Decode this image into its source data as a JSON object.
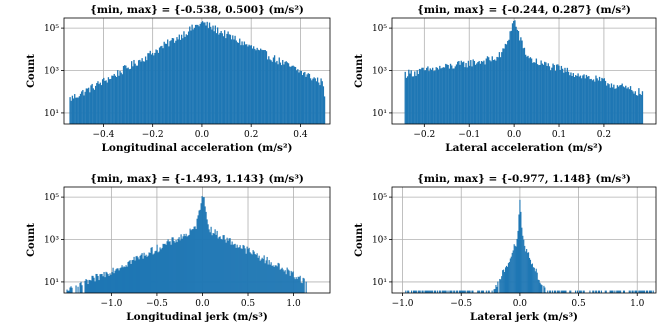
{
  "chart_data": [
    {
      "type": "bar",
      "title": "{min, max} = {-0.538, 0.500} (m/s²)",
      "xlabel": "Longitudinal acceleration (m/s²)",
      "ylabel": "Count",
      "xlim": [
        -0.56,
        0.52
      ],
      "ylim_log": [
        3,
        300000
      ],
      "yscale": "log",
      "xticks": [
        -0.4,
        -0.2,
        0.0,
        0.2,
        0.4
      ],
      "xtick_labels": [
        "−0.4",
        "−0.2",
        "0.0",
        "0.2",
        "0.4"
      ],
      "yticks": [
        10,
        1000,
        100000
      ],
      "ytick_labels": [
        "10¹",
        "10³",
        "10⁵"
      ],
      "grid": true,
      "color": "#1f77b4",
      "shape": {
        "min": -0.538,
        "max": 0.5,
        "peak": 180000,
        "widthL": 0.06,
        "widthR": 0.075,
        "tailL": 0.3,
        "tailR": 0.15,
        "tailFloor": 5,
        "nbins": 220
      }
    },
    {
      "type": "bar",
      "title": "{min, max} = {-0.244, 0.287} (m/s²)",
      "xlabel": "Lateral acceleration (m/s²)",
      "ylabel": "Count",
      "xlim": [
        -0.272,
        0.316
      ],
      "ylim_log": [
        3,
        300000
      ],
      "yscale": "log",
      "xticks": [
        -0.2,
        -0.1,
        0.0,
        0.1,
        0.2
      ],
      "xtick_labels": [
        "−0.2",
        "−0.1",
        "0.0",
        "0.1",
        "0.2"
      ],
      "yticks": [
        10,
        1000,
        100000
      ],
      "ytick_labels": [
        "10¹",
        "10³",
        "10⁵"
      ],
      "grid": true,
      "color": "#1f77b4",
      "shape": {
        "min": -0.244,
        "max": 0.287,
        "peak": 250000,
        "widthL": 0.006,
        "widthR": 0.006,
        "tailL": 0.35,
        "tailR": 0.2,
        "tailFloor": 6,
        "nbins": 200
      }
    },
    {
      "type": "bar",
      "title": "{min, max} = {-1.493, 1.143} (m/s³)",
      "xlabel": "Longitudinal jerk (m/s³)",
      "ylabel": "Count",
      "xlim": [
        -1.52,
        1.4
      ],
      "ylim_log": [
        3,
        300000
      ],
      "yscale": "log",
      "xticks": [
        -1.0,
        -0.5,
        0.0,
        0.5,
        1.0
      ],
      "xtick_labels": [
        "−1.0",
        "−0.5",
        "0.0",
        "0.5",
        "1.0"
      ],
      "yticks": [
        10,
        1000,
        100000
      ],
      "ytick_labels": [
        "10¹",
        "10³",
        "10⁵"
      ],
      "grid": true,
      "color": "#1f77b4",
      "shape": {
        "min": -1.493,
        "max": 1.143,
        "peak": 200000,
        "widthL": 0.015,
        "widthR": 0.015,
        "tailL": 0.6,
        "tailR": 0.55,
        "tailFloor": 4,
        "nbins": 240
      }
    },
    {
      "type": "bar",
      "title": "{min, max} = {-0.977, 1.148} (m/s³)",
      "xlabel": "Lateral jerk (m/s³)",
      "ylabel": "Count",
      "xlim": [
        -1.09,
        1.16
      ],
      "ylim_log": [
        3,
        300000
      ],
      "yscale": "log",
      "xticks": [
        -1.0,
        -0.5,
        0.0,
        0.5,
        1.0
      ],
      "xtick_labels": [
        "−1.0",
        "−0.5",
        "0.0",
        "0.5",
        "1.0"
      ],
      "yticks": [
        10,
        1000,
        100000
      ],
      "ytick_labels": [
        "10¹",
        "10³",
        "10⁵"
      ],
      "grid": true,
      "color": "#1f77b4",
      "shape": {
        "min": -0.977,
        "max": 1.148,
        "peak": 80000,
        "widthL": 0.005,
        "widthR": 0.005,
        "tailL": 0.1,
        "tailR": 0.1,
        "tailFloor": 3,
        "nbins": 260
      }
    }
  ]
}
